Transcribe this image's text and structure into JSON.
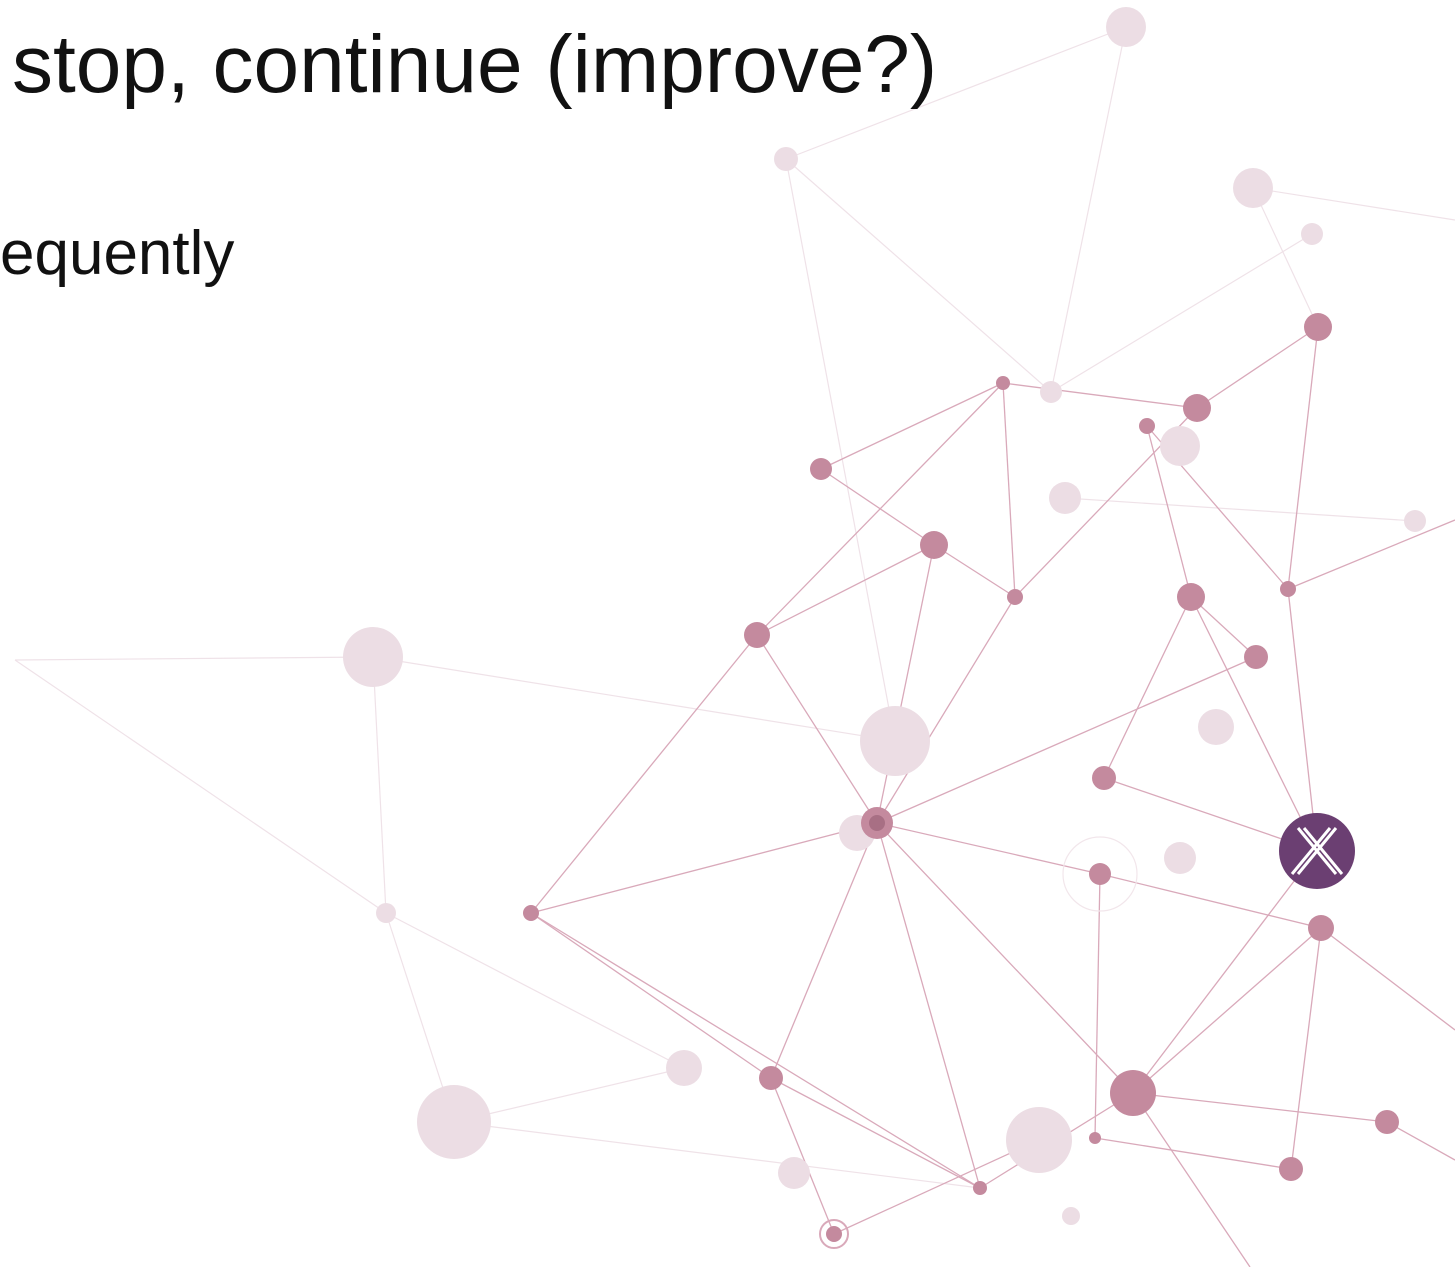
{
  "title": "stop, continue (improve?)",
  "body": {
    "lines": [
      "equently"
    ]
  }
}
